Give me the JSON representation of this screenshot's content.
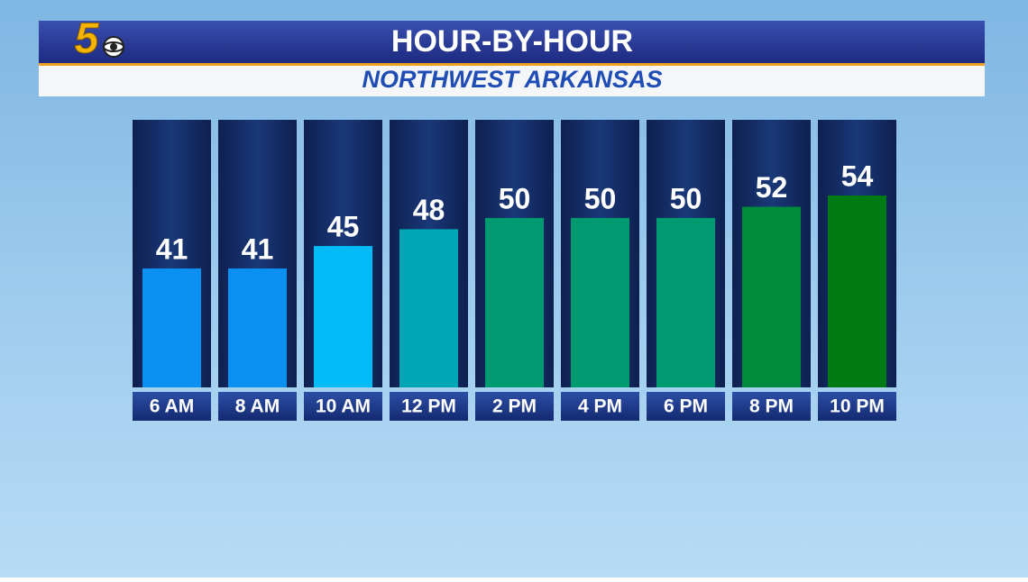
{
  "logo": "5",
  "chart_data": {
    "type": "bar",
    "title": "HOUR-BY-HOUR",
    "subtitle": "NORTHWEST ARKANSAS",
    "categories": [
      "6 AM",
      "8 AM",
      "10 AM",
      "12 PM",
      "2 PM",
      "4 PM",
      "6 PM",
      "8 PM",
      "10 PM"
    ],
    "values": [
      41,
      41,
      45,
      48,
      50,
      50,
      50,
      52,
      54
    ],
    "colors": [
      "#0a90f0",
      "#0a90f0",
      "#00bbf6",
      "#00a6b5",
      "#009a70",
      "#009a70",
      "#009a70",
      "#008a3c",
      "#007a12"
    ]
  }
}
